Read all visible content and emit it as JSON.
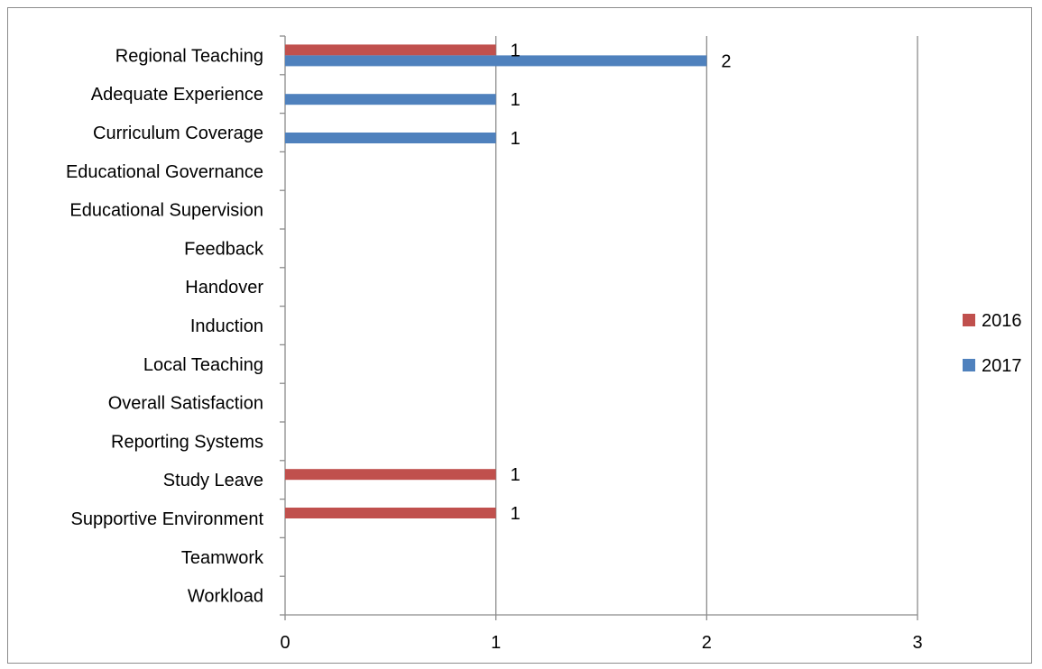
{
  "chart_data": {
    "type": "bar",
    "orientation": "horizontal",
    "categories": [
      "Regional Teaching",
      "Adequate Experience",
      "Curriculum Coverage",
      "Educational Governance",
      "Educational Supervision",
      "Feedback",
      "Handover",
      "Induction",
      "Local Teaching",
      "Overall Satisfaction",
      "Reporting Systems",
      "Study Leave",
      "Supportive Environment",
      "Teamwork",
      "Workload"
    ],
    "series": [
      {
        "name": "2016",
        "color": "#c0504d",
        "values": [
          1,
          0,
          0,
          0,
          0,
          0,
          0,
          0,
          0,
          0,
          0,
          1,
          1,
          0,
          0
        ]
      },
      {
        "name": "2017",
        "color": "#4f81bd",
        "values": [
          2,
          1,
          1,
          0,
          0,
          0,
          0,
          0,
          0,
          0,
          0,
          0,
          0,
          0,
          0
        ]
      }
    ],
    "xlim": [
      0,
      3
    ],
    "xticks": [
      "0",
      "1",
      "2",
      "3"
    ],
    "grid": "vertical major gridlines",
    "legend_position": "right",
    "data_labels": true
  }
}
